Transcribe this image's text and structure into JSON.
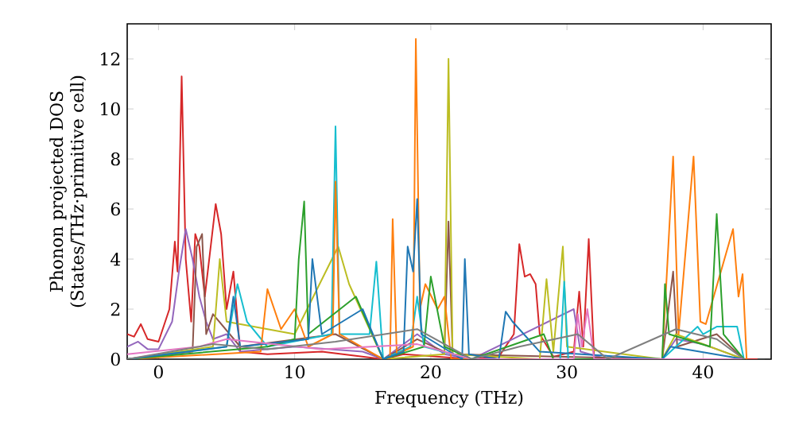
{
  "chart_data": {
    "type": "line",
    "xlabel": "Frequency (THz)",
    "ylabel": "Phonon projected DOS (States/THz·primitive cell)",
    "xlim": [
      -2.3,
      45
    ],
    "ylim": [
      0,
      13.4
    ],
    "xticks": [
      0,
      10,
      20,
      30,
      40
    ],
    "yticks": [
      0,
      2,
      4,
      6,
      8,
      10,
      12
    ],
    "grid": false,
    "marker": "none",
    "line_style": "solid",
    "series": [
      {
        "color": "#d62728",
        "x": [
          -2.3,
          -1.8,
          -1.3,
          -0.8,
          0,
          0.8,
          1.2,
          1.4,
          1.7,
          2.0,
          2.4,
          2.7,
          3.0,
          3.4,
          4.2,
          4.6,
          5.0,
          5.5,
          6.0,
          8.0,
          12.0,
          16.5,
          18.0,
          23.0,
          25.0,
          26.1,
          26.5,
          26.9,
          27.3,
          27.7,
          28.0,
          29.0,
          30.5,
          30.9,
          31.2,
          31.6,
          32.0,
          37.0,
          44.0
        ],
        "values": [
          1.0,
          0.9,
          1.4,
          0.8,
          0.7,
          2.0,
          4.7,
          3.5,
          11.3,
          4.0,
          1.5,
          5.0,
          4.5,
          2.5,
          6.2,
          5.0,
          2.0,
          3.5,
          0.3,
          0.2,
          0.3,
          0,
          0.2,
          0,
          0.1,
          1.0,
          4.6,
          3.3,
          3.4,
          3.0,
          1.0,
          0.1,
          0.3,
          2.7,
          0.5,
          4.8,
          0,
          0,
          0
        ]
      },
      {
        "color": "#9467bd",
        "x": [
          -2.3,
          -1.5,
          -0.8,
          0,
          1.0,
          1.5,
          2.0,
          2.5,
          3.0,
          3.5,
          4.0,
          5.0,
          6.0,
          10.0,
          15.0,
          16.5,
          19.0,
          21.0,
          23.0,
          26.0,
          30.5,
          31.0,
          33.0,
          37.0,
          38.0,
          40.0,
          43.0
        ],
        "values": [
          0.5,
          0.7,
          0.4,
          0.4,
          1.5,
          3.5,
          5.2,
          4.0,
          2.5,
          1.5,
          0.8,
          1.0,
          0.3,
          0.5,
          0.3,
          0,
          1.0,
          0.2,
          0,
          0.8,
          2.0,
          0.3,
          0,
          0,
          0.8,
          0.6,
          0
        ]
      },
      {
        "color": "#8c564b",
        "x": [
          -2.3,
          2.5,
          2.8,
          3.2,
          3.5,
          4.0,
          6.0,
          13.0,
          16.5,
          19.0,
          21.0,
          21.3,
          21.6,
          37.0,
          37.8,
          38.1,
          41.0,
          43.0
        ],
        "values": [
          0,
          0.3,
          4.5,
          5.0,
          1.0,
          1.8,
          0.5,
          1.0,
          0,
          0.8,
          0.3,
          5.5,
          0.2,
          0,
          3.5,
          0.5,
          1.0,
          0
        ]
      },
      {
        "color": "#bcbd22",
        "x": [
          -2.3,
          4.0,
          4.5,
          5.0,
          10.0,
          13.2,
          14.0,
          16.5,
          21.0,
          21.3,
          21.6,
          28.0,
          28.5,
          29.0,
          29.7,
          30.0,
          37.0,
          38.0,
          43.0
        ],
        "values": [
          0,
          0.5,
          4.0,
          1.5,
          1.0,
          4.5,
          3.0,
          0,
          0.2,
          12.0,
          0.2,
          0,
          3.2,
          0.3,
          4.5,
          0.5,
          0,
          1.0,
          0
        ]
      },
      {
        "color": "#17becf",
        "x": [
          -2.3,
          5.0,
          5.8,
          6.5,
          8.0,
          12.7,
          13.0,
          13.3,
          15.5,
          16.0,
          16.5,
          18.5,
          19.0,
          19.5,
          23.0,
          29.5,
          29.8,
          30.1,
          37.0,
          39.6,
          40.0,
          41.0,
          42.5,
          43.0
        ],
        "values": [
          0,
          0.5,
          3.0,
          1.5,
          0.5,
          1.0,
          9.3,
          1.0,
          1.0,
          3.9,
          0,
          0.5,
          2.5,
          0.5,
          0,
          0,
          3.1,
          0,
          0,
          1.3,
          1.0,
          1.3,
          1.3,
          0
        ]
      },
      {
        "color": "#ff7f0e",
        "x": [
          -2.3,
          7.5,
          8.0,
          9.0,
          10.0,
          11.0,
          12.8,
          13.0,
          13.3,
          16.5,
          17.0,
          17.2,
          17.5,
          18.7,
          18.9,
          19.2,
          19.6,
          20.5,
          21.0,
          21.5,
          37.0,
          37.8,
          38.2,
          39.3,
          39.8,
          40.2,
          42.2,
          42.6,
          42.9,
          43.2
        ],
        "values": [
          0,
          0.3,
          2.8,
          1.2,
          2.0,
          0.5,
          1.0,
          7.1,
          1.0,
          0,
          0,
          5.6,
          0.2,
          0.5,
          12.8,
          2.0,
          3.0,
          2.0,
          2.5,
          0,
          0,
          8.1,
          1.0,
          8.1,
          1.5,
          1.4,
          5.2,
          2.5,
          3.4,
          0
        ]
      },
      {
        "color": "#2ca02c",
        "x": [
          -2.3,
          8.0,
          10.0,
          10.3,
          10.7,
          11.0,
          14.5,
          16.5,
          19.5,
          20.0,
          21.0,
          23.0,
          28.3,
          29.0,
          37.0,
          37.2,
          37.5,
          40.5,
          41.0,
          41.5,
          43.0
        ],
        "values": [
          0,
          0.5,
          0.8,
          4.0,
          6.3,
          1.0,
          2.5,
          0,
          0.5,
          3.3,
          0.5,
          0,
          1.0,
          0,
          0,
          3.0,
          1.0,
          0.5,
          5.8,
          1.0,
          0
        ]
      },
      {
        "color": "#1f77b4",
        "x": [
          -2.3,
          5.0,
          5.5,
          6.0,
          11.0,
          11.3,
          12.0,
          15.0,
          16.5,
          18.0,
          18.3,
          18.7,
          19.0,
          19.3,
          22.3,
          22.5,
          22.8,
          25.0,
          25.5,
          26.0,
          28.0,
          37.0,
          37.6,
          43.0
        ],
        "values": [
          0,
          0.5,
          2.5,
          0.5,
          0.8,
          4.0,
          1.0,
          2.0,
          0,
          0.3,
          4.5,
          3.5,
          6.4,
          1.0,
          0,
          4.0,
          0.2,
          0,
          1.9,
          1.5,
          0.3,
          0,
          0.5,
          0
        ]
      },
      {
        "color": "#e377c2",
        "x": [
          -2.3,
          3.0,
          5.0,
          12.0,
          19.0,
          23.0,
          30.5,
          30.8,
          31.1,
          31.5,
          32.0,
          43.0
        ],
        "values": [
          0.2,
          0.5,
          0.8,
          0.4,
          0.6,
          0,
          0,
          1.8,
          0.5,
          2.0,
          0,
          0
        ]
      },
      {
        "color": "#7f7f7f",
        "x": [
          -2.3,
          4.0,
          8.0,
          13.0,
          19.0,
          23.0,
          26.5,
          30.8,
          33.0,
          38.0,
          41.0,
          43.0
        ],
        "values": [
          0,
          0.6,
          0.4,
          0.7,
          1.2,
          0,
          0.5,
          1.0,
          0,
          1.2,
          0.8,
          0
        ]
      }
    ]
  }
}
